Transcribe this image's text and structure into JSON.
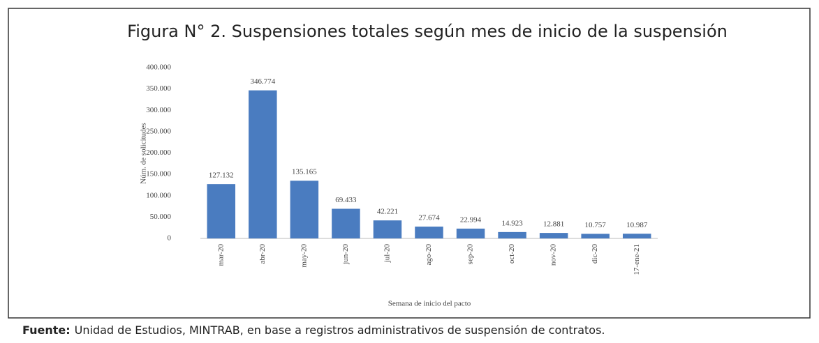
{
  "chart_data": {
    "type": "bar",
    "title": "Figura N° 2. Suspensiones totales según mes de inicio de la suspensión",
    "x_label": "Semana de inicio del pacto",
    "y_label": "Núm. de solicitudes",
    "categories": [
      "mar-20",
      "abr-20",
      "may-20",
      "jun-20",
      "jul-20",
      "ago-20",
      "sep-20",
      "oct-20",
      "nov-20",
      "dic-20",
      "17-ene-21"
    ],
    "values": [
      127132,
      346774,
      135165,
      69433,
      42221,
      27674,
      22994,
      14923,
      12881,
      10757,
      10987
    ],
    "value_labels": [
      "127.132",
      "346.774",
      "135.165",
      "69.433",
      "42.221",
      "27.674",
      "22.994",
      "14.923",
      "12.881",
      "10.757",
      "10.987"
    ],
    "color": "#4a7cc0",
    "ylim": [
      0,
      400000
    ],
    "yticks": [
      0,
      {
        "value": 50000,
        "label": "50.000"
      },
      {
        "value": 100000,
        "label": "100.000"
      },
      {
        "value": 150000,
        "label": "150.000"
      },
      {
        "value": 200000,
        "label": "200.000"
      },
      {
        "value": 250000,
        "label": "250.000"
      },
      {
        "value": 300000,
        "label": "300.000"
      },
      {
        "value": 350000,
        "label": "350.000"
      },
      {
        "value": 400000,
        "label": "400.000"
      }
    ],
    "grid": false,
    "source_label": "Fuente:",
    "source": "Unidad de Estudios, MINTRAB, en base a registros administrativos de suspensión de contratos."
  }
}
